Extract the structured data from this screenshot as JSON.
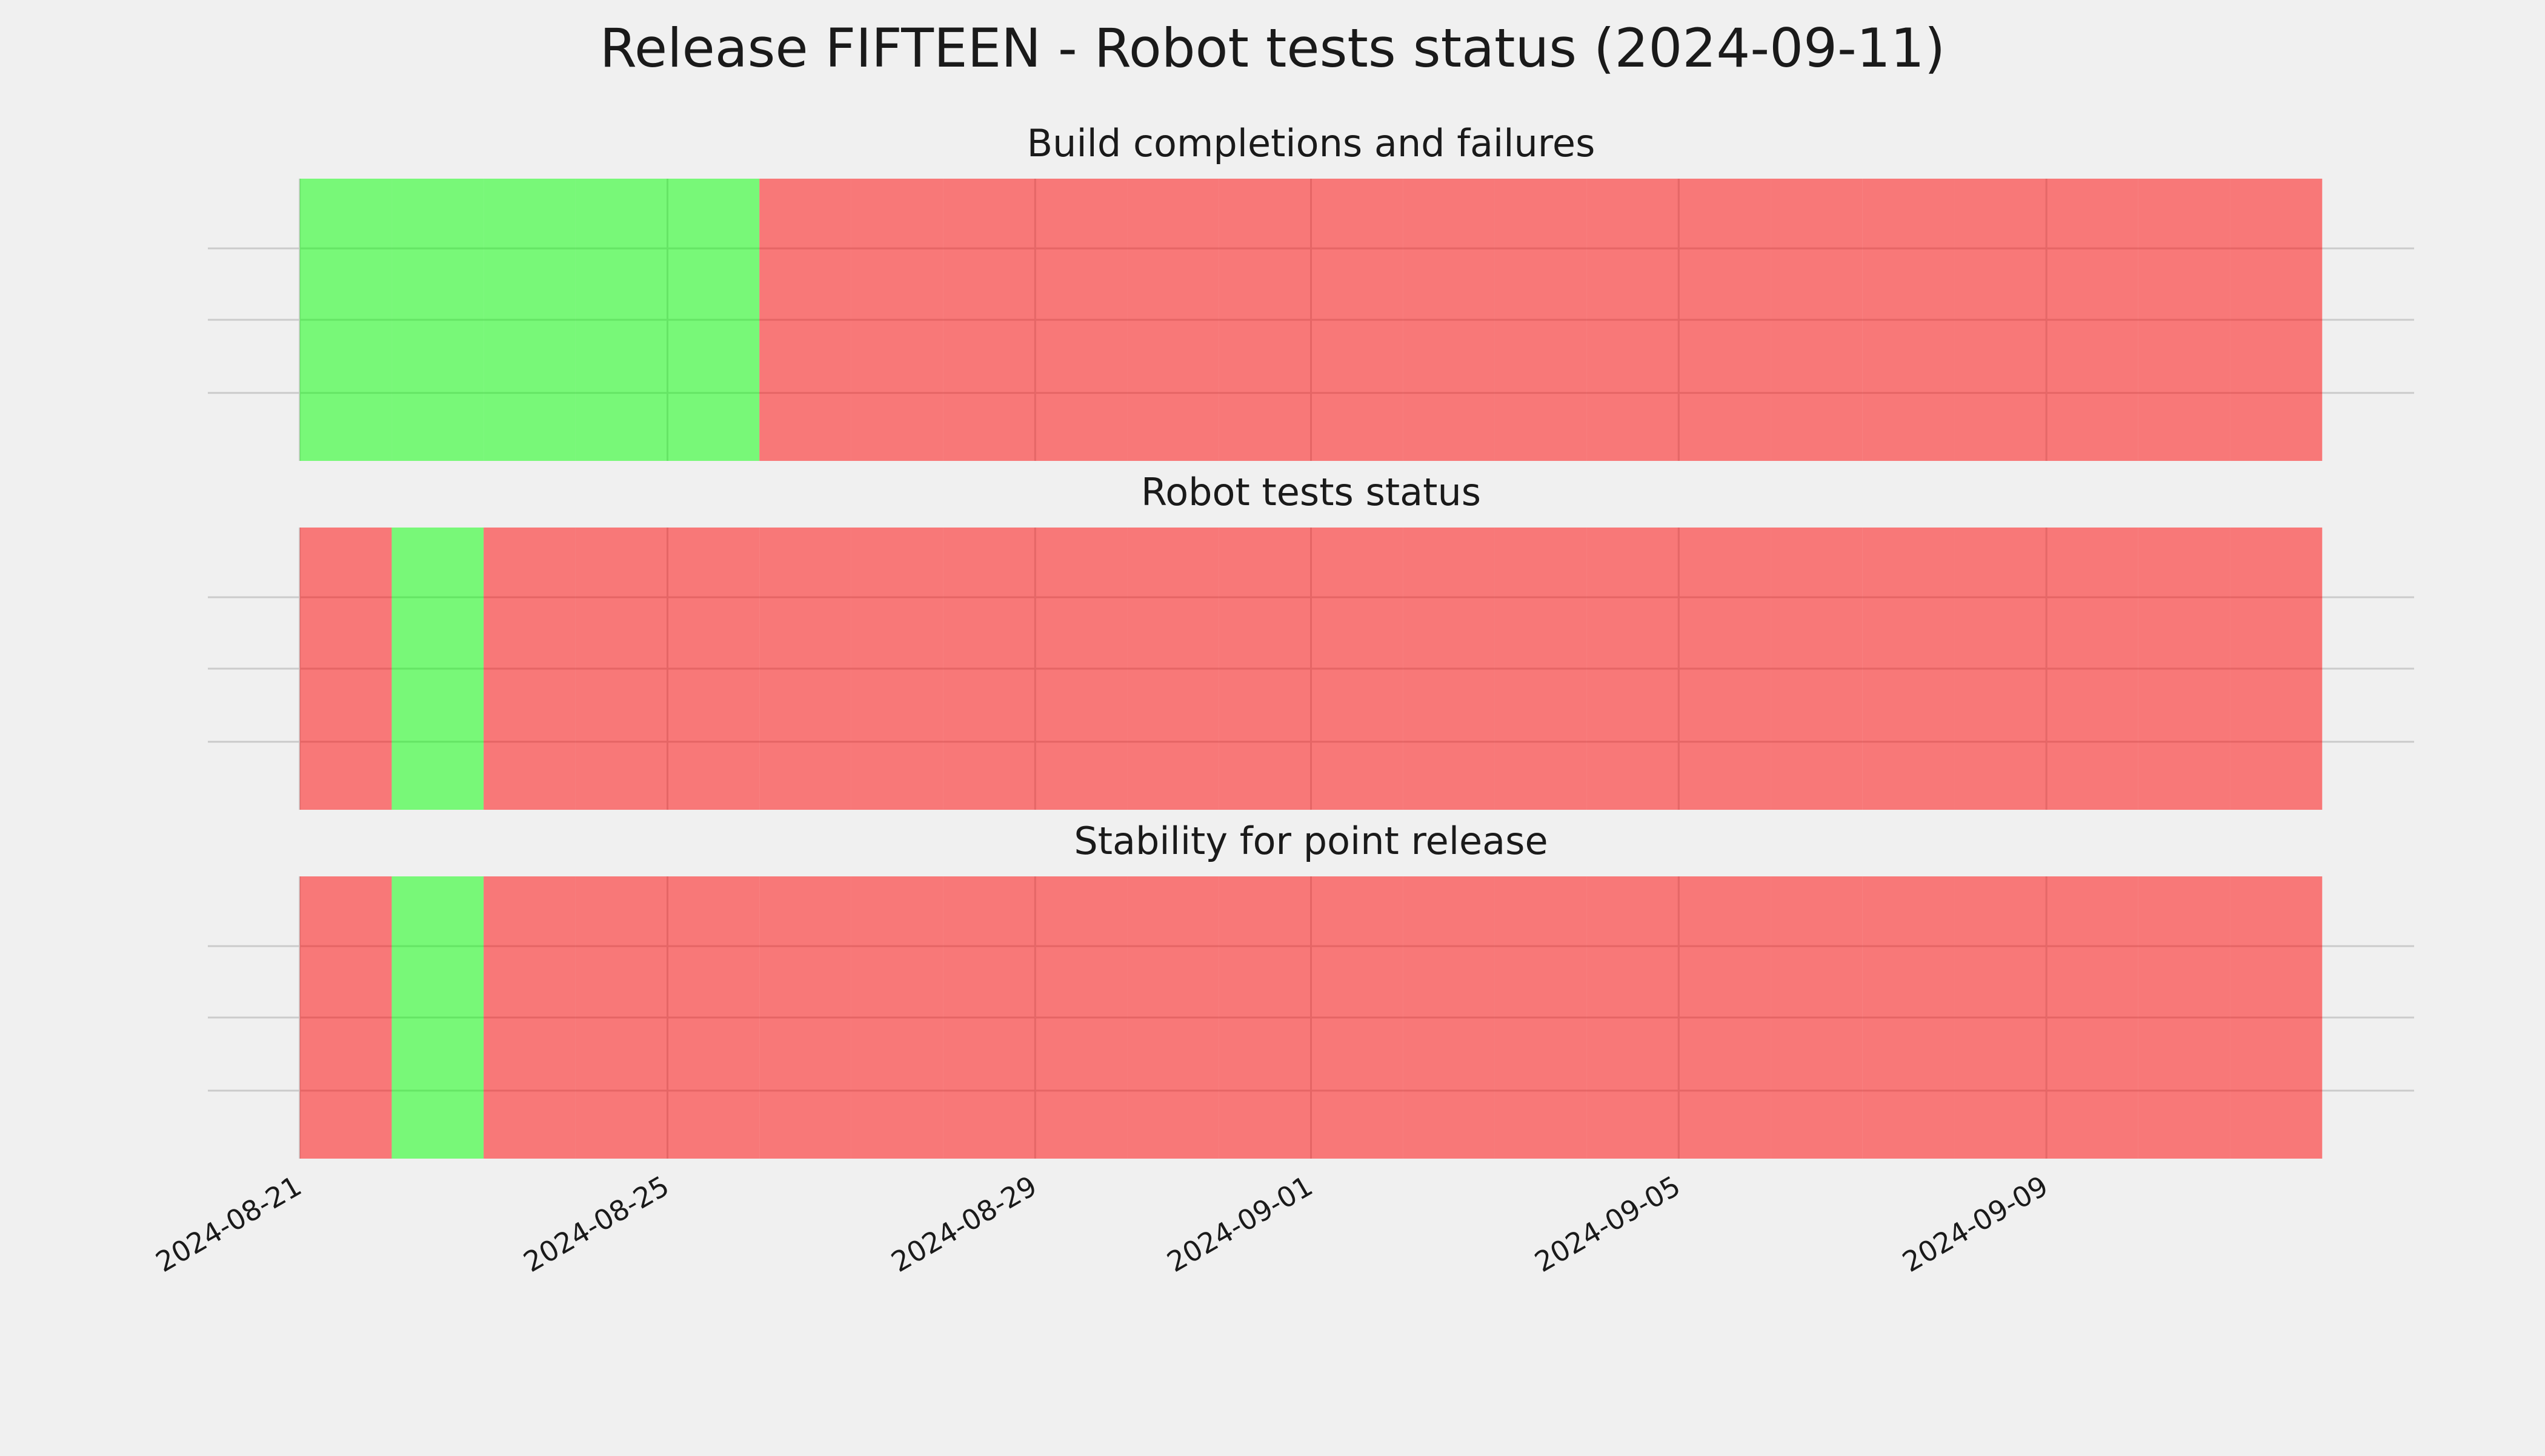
{
  "title": "Release FIFTEEN - Robot tests status (2024-09-11)",
  "chart_data": [
    {
      "type": "timeline",
      "title": "Build completions and failures",
      "x": [
        "2024-08-21",
        "2024-08-22",
        "2024-08-23",
        "2024-08-24",
        "2024-08-25",
        "2024-08-26",
        "2024-08-27",
        "2024-08-28",
        "2024-08-29",
        "2024-08-30",
        "2024-08-31",
        "2024-09-01",
        "2024-09-02",
        "2024-09-03",
        "2024-09-04",
        "2024-09-05",
        "2024-09-06",
        "2024-09-07",
        "2024-09-08",
        "2024-09-09",
        "2024-09-10",
        "2024-09-11"
      ],
      "values": [
        1,
        1,
        1,
        1,
        1,
        0,
        0,
        0,
        0,
        0,
        0,
        0,
        0,
        0,
        0,
        0,
        0,
        0,
        0,
        0,
        0,
        0
      ],
      "colors": [
        "#ff0000",
        "#00ff00"
      ],
      "alpha": 0.5,
      "xlim": [
        "2024-08-20",
        "2024-09-13"
      ],
      "xticks": [
        "2024-08-21",
        "2024-08-25",
        "2024-08-29",
        "2024-09-01",
        "2024-09-05",
        "2024-09-09"
      ],
      "grid": true
    },
    {
      "type": "timeline",
      "title": "Robot tests status",
      "x": [
        "2024-08-21",
        "2024-08-22",
        "2024-08-23",
        "2024-08-24",
        "2024-08-25",
        "2024-08-26",
        "2024-08-27",
        "2024-08-28",
        "2024-08-29",
        "2024-08-30",
        "2024-08-31",
        "2024-09-01",
        "2024-09-02",
        "2024-09-03",
        "2024-09-04",
        "2024-09-05",
        "2024-09-06",
        "2024-09-07",
        "2024-09-08",
        "2024-09-09",
        "2024-09-10",
        "2024-09-11"
      ],
      "values": [
        0,
        1,
        0,
        0,
        0,
        0,
        0,
        0,
        0,
        0,
        0,
        0,
        0,
        0,
        0,
        0,
        0,
        0,
        0,
        0,
        0,
        0
      ],
      "colors": [
        "#ff0000",
        "#00ff00"
      ],
      "alpha": 0.5,
      "xlim": [
        "2024-08-20",
        "2024-09-13"
      ],
      "xticks": [
        "2024-08-21",
        "2024-08-25",
        "2024-08-29",
        "2024-09-01",
        "2024-09-05",
        "2024-09-09"
      ],
      "grid": true
    },
    {
      "type": "timeline",
      "title": "Stability for point release",
      "x": [
        "2024-08-21",
        "2024-08-22",
        "2024-08-23",
        "2024-08-24",
        "2024-08-25",
        "2024-08-26",
        "2024-08-27",
        "2024-08-28",
        "2024-08-29",
        "2024-08-30",
        "2024-08-31",
        "2024-09-01",
        "2024-09-02",
        "2024-09-03",
        "2024-09-04",
        "2024-09-05",
        "2024-09-06",
        "2024-09-07",
        "2024-09-08",
        "2024-09-09",
        "2024-09-10",
        "2024-09-11"
      ],
      "values": [
        0,
        1,
        0,
        0,
        0,
        0,
        0,
        0,
        0,
        0,
        0,
        0,
        0,
        0,
        0,
        0,
        0,
        0,
        0,
        0,
        0,
        0
      ],
      "colors": [
        "#ff0000",
        "#00ff00"
      ],
      "alpha": 0.5,
      "xlim": [
        "2024-08-20",
        "2024-09-13"
      ],
      "xticks": [
        "2024-08-21",
        "2024-08-25",
        "2024-08-29",
        "2024-09-01",
        "2024-09-05",
        "2024-09-09"
      ],
      "grid": true
    }
  ]
}
